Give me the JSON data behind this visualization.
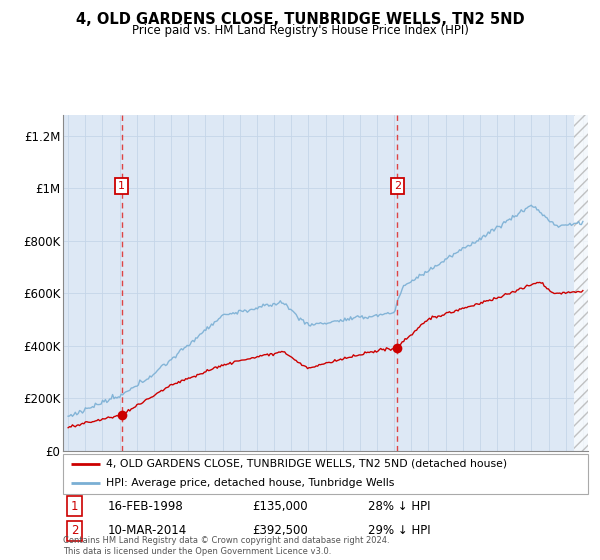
{
  "title": "4, OLD GARDENS CLOSE, TUNBRIDGE WELLS, TN2 5ND",
  "subtitle": "Price paid vs. HM Land Registry's House Price Index (HPI)",
  "ylabel_ticks": [
    "£0",
    "£200K",
    "£400K",
    "£600K",
    "£800K",
    "£1M",
    "£1.2M"
  ],
  "ytick_values": [
    0,
    200000,
    400000,
    600000,
    800000,
    1000000,
    1200000
  ],
  "ylim": [
    0,
    1280000
  ],
  "xlim_start": 1994.7,
  "xlim_end": 2025.3,
  "sale1_year": 1998.12,
  "sale1_price": 135000,
  "sale1_label": "1",
  "sale1_date": "16-FEB-1998",
  "sale1_pct": "28% ↓ HPI",
  "sale2_year": 2014.19,
  "sale2_price": 392500,
  "sale2_label": "2",
  "sale2_date": "10-MAR-2014",
  "sale2_pct": "29% ↓ HPI",
  "red_color": "#cc0000",
  "blue_color": "#7aafd4",
  "dashed_color": "#dd4444",
  "background_color": "#dde8f5",
  "legend_label1": "4, OLD GARDENS CLOSE, TUNBRIDGE WELLS, TN2 5ND (detached house)",
  "legend_label2": "HPI: Average price, detached house, Tunbridge Wells",
  "footer": "Contains HM Land Registry data © Crown copyright and database right 2024.\nThis data is licensed under the Open Government Licence v3.0."
}
